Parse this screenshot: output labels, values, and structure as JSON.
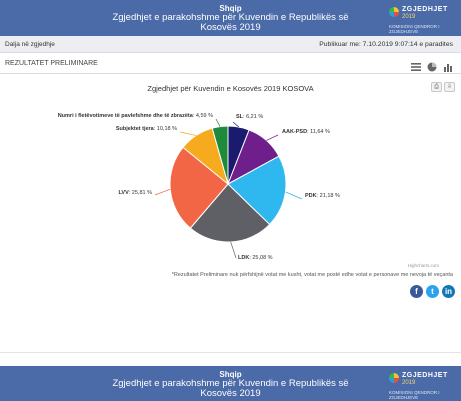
{
  "header": {
    "lang": "Shqip",
    "title": "Zgjedhjet e parakohshme për Kuvendin e Republikës së Kosovës 2019",
    "logo": {
      "line1": "ZGJEDHJET",
      "line2": "2019",
      "line3": "KOMISIONI QENDROR I ZGJEDHJEVE"
    }
  },
  "infobar": {
    "left": "Dalja në zgjedhje",
    "right": "Publikuar me: 7.10.2019 9:07:14 e paradites"
  },
  "results": {
    "label": "REZULTATET PRELIMINARE"
  },
  "chart_data": {
    "type": "pie",
    "title": "Zgjedhjet për Kuvendin e Kosovës 2019 KOSOVA",
    "slices": [
      {
        "label": "SL",
        "display": "SL: 6,21 %",
        "value": 6.21,
        "color": "#1a1a6e"
      },
      {
        "label": "AAK-PSD",
        "display": "AAK-PSD: 11,64 %",
        "value": 11.64,
        "color": "#6f1f8c"
      },
      {
        "label": "PDK",
        "display": "PDK: 21,18 %",
        "value": 21.18,
        "color": "#2fb7f0"
      },
      {
        "label": "LDK",
        "display": "LDK: 25,08 %",
        "value": 25.08,
        "color": "#5f5f66"
      },
      {
        "label": "LVV",
        "display": "LVV: 25,81 %",
        "value": 25.81,
        "color": "#f26545"
      },
      {
        "label": "Subjektet tjera",
        "display": "Subjektet tjera: 10,18 %",
        "value": 10.18,
        "color": "#f5ab1d"
      },
      {
        "label": "Numri i fletëvotimeve të pavlefshme dhe të zbrazëta",
        "display": "Numri i fletëvotimeve të pavlefshme dhe të zbrazëta: 4,59 %",
        "value": 4.59,
        "color": "#1e8a3c"
      }
    ],
    "credit": "Highcharts.com",
    "note": "*Rezultatet Preliminare nuk përfshijnë votat me kusht, votat me postë edhe votat e personave me nevoja të veçanta"
  },
  "footer": {
    "lang": "Shqip",
    "title": "Zgjedhjet e parakohshme për Kuvendin e Republikës së Kosovës 2019"
  }
}
